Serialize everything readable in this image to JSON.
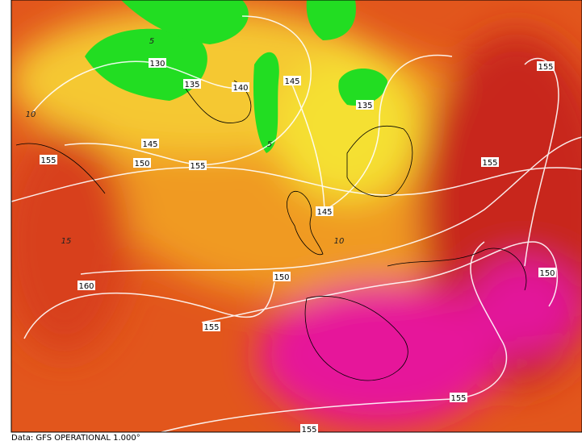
{
  "map": {
    "contour_labels": [
      "130",
      "135",
      "140",
      "145",
      "135",
      "155",
      "145",
      "150",
      "155",
      "155",
      "155",
      "145",
      "160",
      "150",
      "155",
      "150",
      "155",
      "155"
    ],
    "temperature_labels": [
      "10",
      "5",
      "15",
      "10",
      "5"
    ],
    "footer": "Data: GFS OPERATIONAL 1.000°"
  }
}
